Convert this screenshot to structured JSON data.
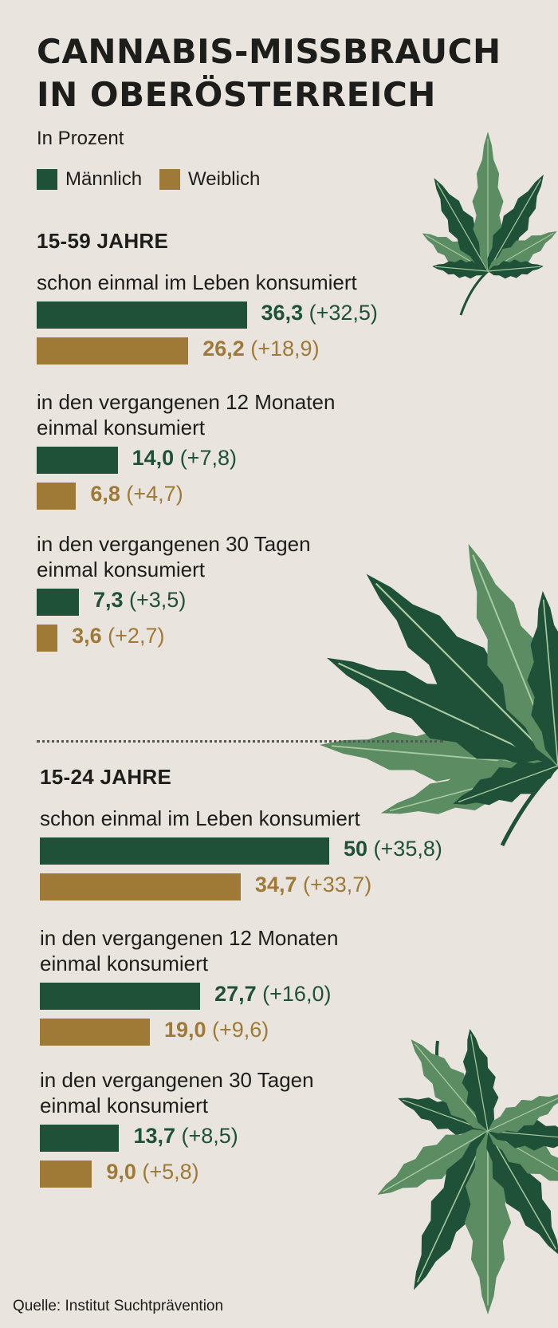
{
  "title_line1": "CANNABIS-MISSBRAUCH",
  "title_line2": "IN OBERÖSTERREICH",
  "subtitle": "In Prozent",
  "source": "Quelle: Institut Suchtprävention",
  "colors": {
    "male": "#1e5138",
    "female": "#9e7a36",
    "background": "#e9e5de",
    "leaf_dark": "#1e5138",
    "leaf_light": "#5b8c62"
  },
  "chart_data": {
    "type": "bar",
    "orientation": "horizontal",
    "unit": "In Prozent",
    "legend": [
      "Männlich",
      "Weiblich"
    ],
    "legend_position": "top-left",
    "grid": false,
    "xlim": [
      0,
      50
    ],
    "sections": [
      {
        "heading": "15-59 JAHRE",
        "groups": [
          {
            "label_lines": [
              "schon einmal im Leben konsumiert"
            ],
            "values": [
              36.3,
              26.2
            ],
            "value_labels": [
              "36,3",
              "26,2"
            ],
            "change_labels": [
              "(+32,5)",
              "(+18,9)"
            ]
          },
          {
            "label_lines": [
              "in den vergangenen 12 Monaten",
              "einmal konsumiert"
            ],
            "values": [
              14.0,
              6.8
            ],
            "value_labels": [
              "14,0",
              "6,8"
            ],
            "change_labels": [
              "(+7,8)",
              "(+4,7)"
            ]
          },
          {
            "label_lines": [
              "in den vergangenen 30 Tagen",
              "einmal konsumiert"
            ],
            "values": [
              7.3,
              3.6
            ],
            "value_labels": [
              "7,3",
              "3,6"
            ],
            "change_labels": [
              "(+3,5)",
              "(+2,7)"
            ]
          }
        ]
      },
      {
        "heading": "15-24 JAHRE",
        "groups": [
          {
            "label_lines": [
              "schon einmal im Leben konsumiert"
            ],
            "values": [
              50,
              34.7
            ],
            "value_labels": [
              "50",
              "34,7"
            ],
            "change_labels": [
              "(+35,8)",
              "(+33,7)"
            ]
          },
          {
            "label_lines": [
              "in den vergangenen 12 Monaten",
              "einmal konsumiert"
            ],
            "values": [
              27.7,
              19.0
            ],
            "value_labels": [
              "27,7",
              "19,0"
            ],
            "change_labels": [
              "(+16,0)",
              "(+9,6)"
            ]
          },
          {
            "label_lines": [
              "in den vergangenen 30 Tagen",
              "einmal konsumiert"
            ],
            "values": [
              13.7,
              9.0
            ],
            "value_labels": [
              "13,7",
              "9,0"
            ],
            "change_labels": [
              "(+8,5)",
              "(+5,8)"
            ]
          }
        ]
      }
    ]
  }
}
